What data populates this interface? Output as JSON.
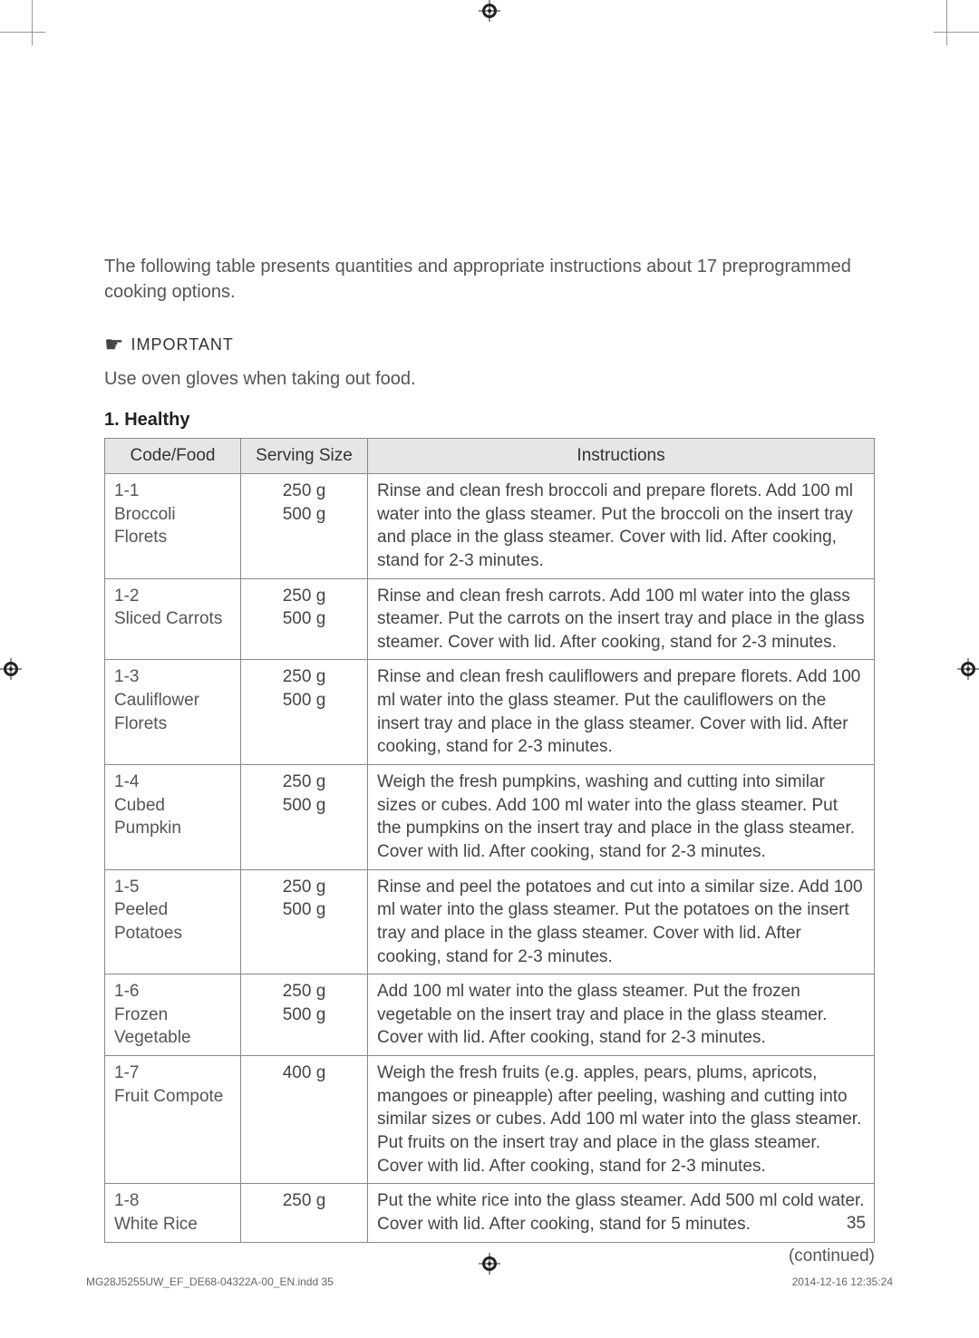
{
  "intro": "The following table presents quantities and appropriate instructions about 17 preprogrammed cooking options.",
  "important_label": "IMPORTANT",
  "gloves_text": "Use oven gloves when taking out food.",
  "section_title": "1. Healthy",
  "headers": {
    "code": "Code/Food",
    "serving": "Serving Size",
    "instructions": "Instructions"
  },
  "rows": [
    {
      "code": "1-1\nBroccoli Florets",
      "serving": "250 g\n500 g",
      "instructions": "Rinse and clean fresh broccoli and prepare florets. Add 100 ml water into the glass steamer. Put the broccoli on the insert tray and place in the glass steamer. Cover with lid. After cooking, stand for 2-3 minutes."
    },
    {
      "code": "1-2\nSliced Carrots",
      "serving": "250 g\n500 g",
      "instructions": "Rinse and clean fresh carrots. Add 100 ml water into the glass steamer. Put the carrots on the insert tray and place in the glass steamer. Cover with lid. After cooking, stand for 2-3 minutes."
    },
    {
      "code": "1-3\nCauliflower Florets",
      "serving": "250 g\n500 g",
      "instructions": "Rinse and clean fresh cauliflowers and prepare florets. Add 100 ml water into the glass steamer. Put the cauliflowers on the insert tray and place in the glass steamer. Cover with lid. After cooking, stand for 2-3 minutes."
    },
    {
      "code": "1-4\nCubed Pumpkin",
      "serving": "250 g\n500 g",
      "instructions": "Weigh the fresh pumpkins, washing and cutting into similar sizes or cubes. Add 100 ml water into the glass steamer. Put the pumpkins on the insert tray and place in the glass steamer. Cover with lid. After cooking, stand for 2-3 minutes."
    },
    {
      "code": "1-5\nPeeled Potatoes",
      "serving": "250 g\n500 g",
      "instructions": "Rinse and peel the potatoes and cut into a similar size. Add 100 ml water into the glass steamer. Put the potatoes on the insert tray and place in the glass steamer. Cover with lid. After cooking, stand for 2-3 minutes."
    },
    {
      "code": "1-6\nFrozen Vegetable",
      "serving": "250 g\n500 g",
      "instructions": "Add 100 ml water into the glass steamer. Put the frozen vegetable on the insert tray and place in the glass steamer. Cover with lid. After cooking, stand for 2-3 minutes."
    },
    {
      "code": "1-7\nFruit Compote",
      "serving": "400 g",
      "instructions": "Weigh the fresh fruits (e.g. apples, pears, plums, apricots, mangoes or pineapple) after peeling, washing and cutting into similar sizes or cubes. Add 100 ml water into the glass steamer. Put fruits on the insert tray and place in the glass steamer. Cover with lid. After cooking, stand for 2-3 minutes."
    },
    {
      "code": "1-8\nWhite Rice",
      "serving": "250 g",
      "instructions": "Put the white rice into the glass steamer. Add 500 ml cold water. Cover with lid. After cooking, stand for 5 minutes."
    }
  ],
  "continued": "(continued)",
  "page_number": "35",
  "footer_left": "MG28J5255UW_EF_DE68-04322A-00_EN.indd   35",
  "footer_right": "2014-12-16    12:35:24"
}
